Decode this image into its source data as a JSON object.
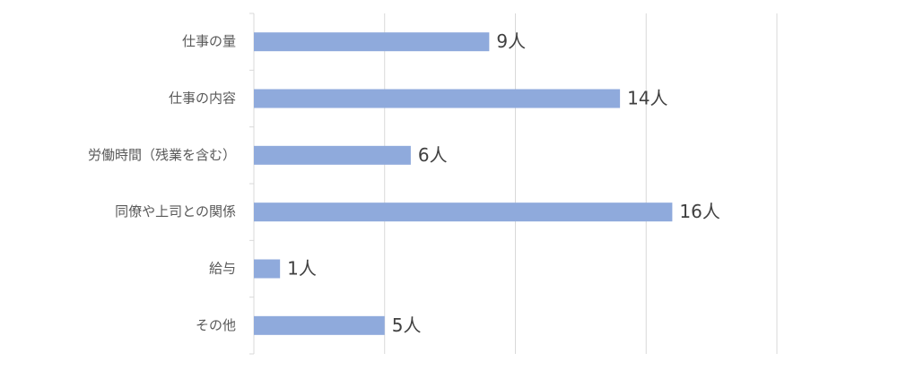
{
  "chart_data": {
    "type": "bar",
    "orientation": "horizontal",
    "categories": [
      "仕事の量",
      "仕事の内容",
      "労働時間（残業を含む）",
      "同僚や上司との関係",
      "給与",
      "その他"
    ],
    "values": [
      9,
      14,
      6,
      16,
      1,
      5
    ],
    "value_labels": [
      "9人",
      "14人",
      "6人",
      "16人",
      "1人",
      "5人"
    ],
    "color": "#8faadc",
    "xlim": [
      0,
      20
    ],
    "xticks": [
      0,
      5,
      10,
      15,
      20
    ],
    "grid": true
  }
}
